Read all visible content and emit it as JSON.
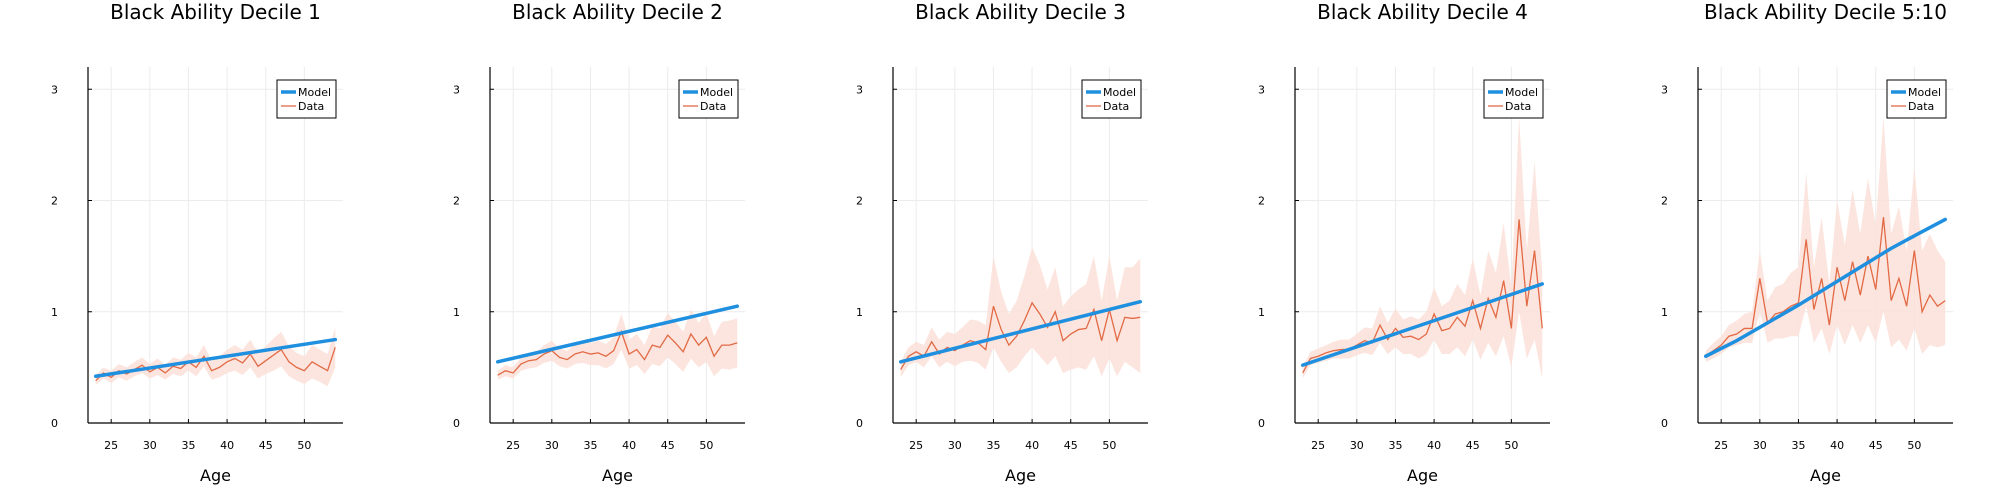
{
  "colors": {
    "model": "#1f8fdf",
    "data": "#e26a45",
    "band": "#fbe1d8",
    "grid": "#ececec",
    "axis": "#000000"
  },
  "chart_data": [
    {
      "type": "line",
      "title": "Black Ability Decile 1",
      "xlabel": "Age",
      "ylabel": "",
      "xlim": [
        22,
        55
      ],
      "ylim": [
        0,
        3.2
      ],
      "xticks": [
        "25",
        "30",
        "35",
        "40",
        "45",
        "50"
      ],
      "yticks": [
        "0",
        "1",
        "2",
        "3"
      ],
      "legend": [
        "Model",
        "Data"
      ],
      "legend_position": "top-right",
      "grid": true,
      "model": {
        "x": [
          23,
          54
        ],
        "y": [
          0.42,
          0.75
        ]
      },
      "data": {
        "x": [
          23,
          24,
          25,
          26,
          27,
          28,
          29,
          30,
          31,
          32,
          33,
          34,
          35,
          36,
          37,
          38,
          39,
          40,
          41,
          42,
          43,
          44,
          45,
          46,
          47,
          48,
          49,
          50,
          51,
          52,
          53,
          54
        ],
        "y": [
          0.38,
          0.45,
          0.41,
          0.47,
          0.44,
          0.48,
          0.52,
          0.46,
          0.5,
          0.45,
          0.51,
          0.49,
          0.55,
          0.5,
          0.6,
          0.47,
          0.5,
          0.55,
          0.58,
          0.54,
          0.62,
          0.51,
          0.56,
          0.61,
          0.66,
          0.55,
          0.5,
          0.47,
          0.55,
          0.51,
          0.47,
          0.68
        ],
        "lower": [
          0.34,
          0.4,
          0.36,
          0.41,
          0.38,
          0.42,
          0.45,
          0.4,
          0.43,
          0.39,
          0.44,
          0.42,
          0.47,
          0.42,
          0.51,
          0.39,
          0.41,
          0.45,
          0.47,
          0.43,
          0.5,
          0.4,
          0.44,
          0.47,
          0.51,
          0.42,
          0.38,
          0.35,
          0.4,
          0.37,
          0.33,
          0.5
        ],
        "upper": [
          0.43,
          0.5,
          0.47,
          0.53,
          0.5,
          0.55,
          0.59,
          0.53,
          0.58,
          0.52,
          0.59,
          0.57,
          0.63,
          0.59,
          0.7,
          0.56,
          0.6,
          0.66,
          0.7,
          0.66,
          0.75,
          0.63,
          0.69,
          0.76,
          0.82,
          0.69,
          0.63,
          0.6,
          0.7,
          0.66,
          0.62,
          0.86
        ]
      }
    },
    {
      "type": "line",
      "title": "Black Ability Decile 2",
      "xlabel": "Age",
      "ylabel": "",
      "xlim": [
        22,
        55
      ],
      "ylim": [
        0,
        3.2
      ],
      "xticks": [
        "25",
        "30",
        "35",
        "40",
        "45",
        "50"
      ],
      "yticks": [
        "0",
        "1",
        "2",
        "3"
      ],
      "legend": [
        "Model",
        "Data"
      ],
      "legend_position": "top-right",
      "grid": true,
      "model": {
        "x": [
          23,
          54
        ],
        "y": [
          0.55,
          1.05
        ]
      },
      "data": {
        "x": [
          23,
          24,
          25,
          26,
          27,
          28,
          29,
          30,
          31,
          32,
          33,
          34,
          35,
          36,
          37,
          38,
          39,
          40,
          41,
          42,
          43,
          44,
          45,
          46,
          47,
          48,
          49,
          50,
          51,
          52,
          53,
          54
        ],
        "y": [
          0.43,
          0.47,
          0.45,
          0.53,
          0.56,
          0.57,
          0.62,
          0.65,
          0.59,
          0.57,
          0.62,
          0.64,
          0.62,
          0.63,
          0.6,
          0.65,
          0.82,
          0.62,
          0.66,
          0.57,
          0.7,
          0.68,
          0.79,
          0.72,
          0.64,
          0.8,
          0.7,
          0.77,
          0.6,
          0.7,
          0.7,
          0.72
        ],
        "lower": [
          0.39,
          0.42,
          0.4,
          0.47,
          0.49,
          0.5,
          0.54,
          0.56,
          0.51,
          0.49,
          0.53,
          0.54,
          0.52,
          0.52,
          0.49,
          0.53,
          0.66,
          0.49,
          0.52,
          0.44,
          0.53,
          0.51,
          0.59,
          0.53,
          0.46,
          0.58,
          0.5,
          0.55,
          0.42,
          0.49,
          0.48,
          0.5
        ],
        "upper": [
          0.47,
          0.52,
          0.5,
          0.59,
          0.63,
          0.64,
          0.7,
          0.74,
          0.67,
          0.65,
          0.71,
          0.74,
          0.72,
          0.74,
          0.71,
          0.77,
          0.98,
          0.75,
          0.8,
          0.7,
          0.87,
          0.85,
          0.99,
          0.91,
          0.82,
          1.02,
          0.9,
          0.99,
          0.78,
          0.91,
          0.92,
          0.94
        ]
      }
    },
    {
      "type": "line",
      "title": "Black Ability Decile 3",
      "xlabel": "Age",
      "ylabel": "",
      "xlim": [
        22,
        55
      ],
      "ylim": [
        0,
        3.2
      ],
      "xticks": [
        "25",
        "30",
        "35",
        "40",
        "45",
        "50"
      ],
      "yticks": [
        "0",
        "1",
        "2",
        "3"
      ],
      "legend": [
        "Model",
        "Data"
      ],
      "legend_position": "top-right",
      "grid": true,
      "model": {
        "x": [
          23,
          54
        ],
        "y": [
          0.55,
          1.09
        ]
      },
      "data": {
        "x": [
          23,
          24,
          25,
          26,
          27,
          28,
          29,
          30,
          31,
          32,
          33,
          34,
          35,
          36,
          37,
          38,
          39,
          40,
          41,
          42,
          43,
          44,
          45,
          46,
          47,
          48,
          49,
          50,
          51,
          52,
          53,
          54
        ],
        "y": [
          0.48,
          0.6,
          0.64,
          0.6,
          0.73,
          0.62,
          0.68,
          0.65,
          0.7,
          0.74,
          0.72,
          0.66,
          1.05,
          0.84,
          0.7,
          0.78,
          0.92,
          1.08,
          0.98,
          0.86,
          1.0,
          0.74,
          0.8,
          0.84,
          0.85,
          1.02,
          0.74,
          1.02,
          0.74,
          0.95,
          0.94,
          0.95
        ],
        "lower": [
          0.41,
          0.52,
          0.55,
          0.5,
          0.6,
          0.5,
          0.55,
          0.51,
          0.55,
          0.56,
          0.54,
          0.48,
          0.68,
          0.55,
          0.45,
          0.5,
          0.6,
          0.68,
          0.6,
          0.52,
          0.6,
          0.45,
          0.48,
          0.5,
          0.48,
          0.6,
          0.42,
          0.58,
          0.42,
          0.55,
          0.5,
          0.45
        ],
        "upper": [
          0.55,
          0.68,
          0.73,
          0.7,
          0.86,
          0.75,
          0.82,
          0.8,
          0.86,
          0.93,
          0.92,
          0.88,
          1.5,
          1.18,
          0.98,
          1.1,
          1.32,
          1.58,
          1.42,
          1.2,
          1.4,
          1.05,
          1.14,
          1.2,
          1.25,
          1.5,
          1.1,
          1.5,
          1.1,
          1.4,
          1.4,
          1.48
        ]
      }
    },
    {
      "type": "line",
      "title": "Black Ability Decile 4",
      "xlabel": "Age",
      "ylabel": "",
      "xlim": [
        22,
        55
      ],
      "ylim": [
        0,
        3.2
      ],
      "xticks": [
        "25",
        "30",
        "35",
        "40",
        "45",
        "50"
      ],
      "yticks": [
        "0",
        "1",
        "2",
        "3"
      ],
      "legend": [
        "Model",
        "Data"
      ],
      "legend_position": "top-right",
      "grid": true,
      "model": {
        "x": [
          23,
          54
        ],
        "y": [
          0.52,
          1.25
        ]
      },
      "data": {
        "x": [
          23,
          24,
          25,
          26,
          27,
          28,
          29,
          30,
          31,
          32,
          33,
          34,
          35,
          36,
          37,
          38,
          39,
          40,
          41,
          42,
          43,
          44,
          45,
          46,
          47,
          48,
          49,
          50,
          51,
          52,
          53,
          54
        ],
        "y": [
          0.45,
          0.58,
          0.6,
          0.63,
          0.65,
          0.66,
          0.66,
          0.7,
          0.74,
          0.72,
          0.88,
          0.75,
          0.85,
          0.77,
          0.78,
          0.75,
          0.8,
          0.98,
          0.83,
          0.85,
          0.95,
          0.87,
          1.1,
          0.85,
          1.12,
          0.95,
          1.28,
          0.85,
          1.83,
          1.05,
          1.55,
          0.85
        ],
        "lower": [
          0.4,
          0.52,
          0.54,
          0.56,
          0.58,
          0.58,
          0.58,
          0.61,
          0.63,
          0.61,
          0.72,
          0.62,
          0.68,
          0.62,
          0.62,
          0.58,
          0.62,
          0.75,
          0.62,
          0.62,
          0.68,
          0.6,
          0.75,
          0.57,
          0.72,
          0.6,
          0.78,
          0.5,
          1.0,
          0.58,
          0.75,
          0.4
        ],
        "upper": [
          0.5,
          0.64,
          0.67,
          0.7,
          0.73,
          0.75,
          0.75,
          0.8,
          0.86,
          0.85,
          1.05,
          0.9,
          1.03,
          0.93,
          0.96,
          0.93,
          1.0,
          1.22,
          1.05,
          1.1,
          1.25,
          1.15,
          1.48,
          1.15,
          1.55,
          1.35,
          1.8,
          1.22,
          2.75,
          1.55,
          2.35,
          1.35
        ]
      }
    },
    {
      "type": "line",
      "title": "Black Ability Decile 5:10",
      "xlabel": "Age",
      "ylabel": "",
      "xlim": [
        22,
        55
      ],
      "ylim": [
        0,
        3.2
      ],
      "xticks": [
        "25",
        "30",
        "35",
        "40",
        "45",
        "50"
      ],
      "yticks": [
        "0",
        "1",
        "2",
        "3"
      ],
      "legend": [
        "Model",
        "Data"
      ],
      "legend_position": "top-right",
      "grid": true,
      "model": {
        "x": [
          23,
          27,
          31,
          35,
          39,
          43,
          47,
          51,
          54
        ],
        "y": [
          0.6,
          0.74,
          0.9,
          1.06,
          1.23,
          1.4,
          1.57,
          1.72,
          1.83
        ]
      },
      "data": {
        "x": [
          23,
          24,
          25,
          26,
          27,
          28,
          29,
          30,
          31,
          32,
          33,
          34,
          35,
          36,
          37,
          38,
          39,
          40,
          41,
          42,
          43,
          44,
          45,
          46,
          47,
          48,
          49,
          50,
          51,
          52,
          53,
          54
        ],
        "y": [
          0.6,
          0.65,
          0.7,
          0.78,
          0.8,
          0.85,
          0.85,
          1.3,
          0.9,
          0.98,
          1.0,
          1.05,
          1.08,
          1.65,
          1.02,
          1.3,
          0.88,
          1.4,
          1.1,
          1.45,
          1.15,
          1.5,
          1.2,
          1.85,
          1.1,
          1.3,
          1.05,
          1.55,
          1.0,
          1.15,
          1.05,
          1.1
        ],
        "lower": [
          0.55,
          0.58,
          0.62,
          0.68,
          0.7,
          0.72,
          0.72,
          1.0,
          0.72,
          0.76,
          0.76,
          0.78,
          0.78,
          1.05,
          0.72,
          0.85,
          0.62,
          0.88,
          0.7,
          0.88,
          0.72,
          0.88,
          0.72,
          1.0,
          0.68,
          0.75,
          0.65,
          0.85,
          0.62,
          0.7,
          0.68,
          0.7
        ],
        "upper": [
          0.65,
          0.72,
          0.78,
          0.88,
          0.92,
          0.98,
          1.0,
          1.55,
          1.1,
          1.22,
          1.25,
          1.35,
          1.4,
          2.25,
          1.4,
          1.85,
          1.25,
          2.0,
          1.6,
          2.1,
          1.7,
          2.2,
          1.78,
          2.75,
          1.7,
          1.95,
          1.55,
          2.3,
          1.55,
          1.7,
          1.55,
          1.45
        ]
      }
    }
  ]
}
